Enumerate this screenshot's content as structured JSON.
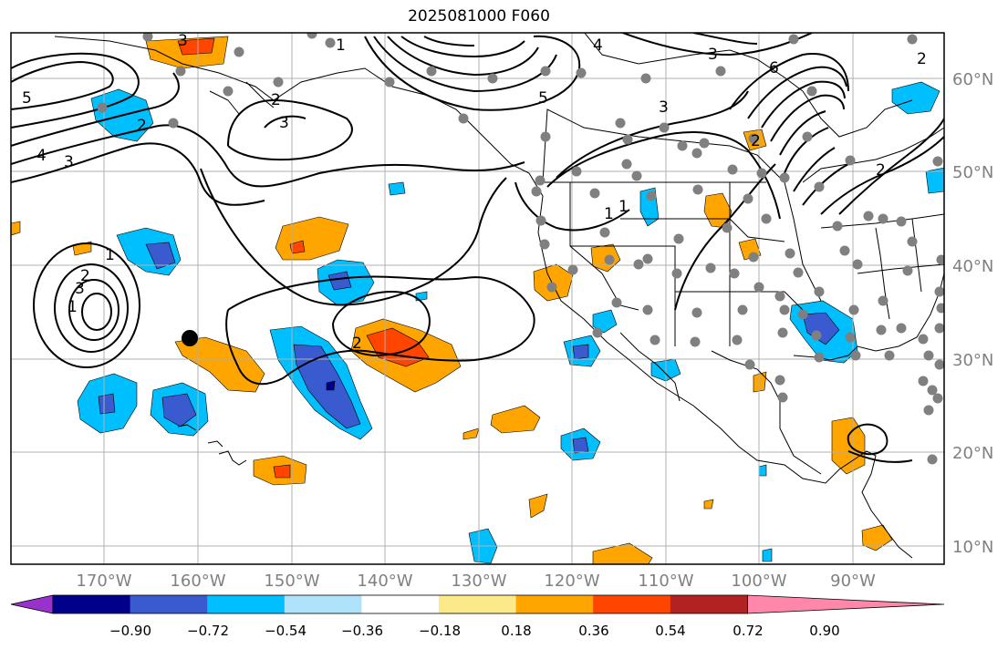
{
  "title": "2025081000 F060",
  "lon_labels": [
    "170°W",
    "160°W",
    "150°W",
    "140°W",
    "130°W",
    "120°W",
    "110°W",
    "100°W",
    "90°W"
  ],
  "lat_labels": [
    "60°N",
    "50°N",
    "40°N",
    "30°N",
    "20°N",
    "10°N"
  ],
  "colorbar_ticks": [
    "−0.90",
    "−0.72",
    "−0.54",
    "−0.36",
    "−0.18",
    "0.18",
    "0.36",
    "0.54",
    "0.72",
    "0.90"
  ],
  "colorbar_colors": [
    "#9932cc",
    "#00008b",
    "#3a5bcf",
    "#00bfff",
    "#aee3fb",
    "#ffffff",
    "#fbe98a",
    "#ffa500",
    "#ff4500",
    "#b22222",
    "#ff88aa"
  ],
  "contour_labels": [
    "5",
    "4",
    "3",
    "2",
    "3",
    "2",
    "1",
    "5",
    "4",
    "3",
    "2",
    "1",
    "3",
    "6",
    "3",
    "2",
    "1",
    "2",
    "1",
    "2",
    "3",
    "2",
    "1"
  ],
  "marker_color": "#808080"
}
